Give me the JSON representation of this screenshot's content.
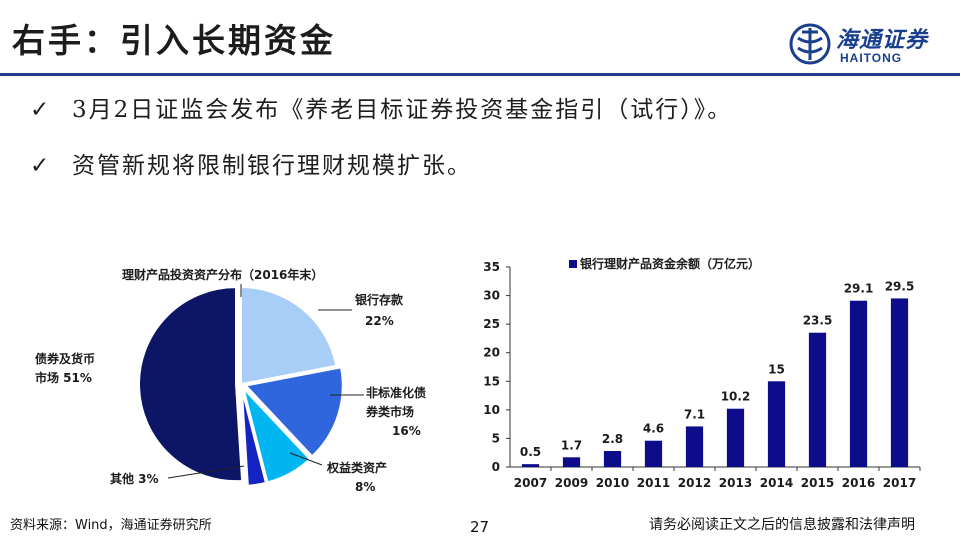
{
  "header": {
    "title": "右手：引入长期资金"
  },
  "logo": {
    "name_cn": "海通证券",
    "name_en": "HAITONG",
    "icon": "haitong-emblem-icon"
  },
  "bullets": [
    {
      "icon": "check-icon",
      "text": "3月2日证监会发布《养老目标证券投资基金指引（试行）》。"
    },
    {
      "icon": "check-icon",
      "text": "资管新规将限制银行理财规模扩张。"
    }
  ],
  "colors": {
    "brand": "#1f3d8c",
    "bar": "#0d0d8c"
  },
  "chart_data": [
    {
      "type": "pie",
      "title": "理财产品投资资产分布（2016年末）",
      "slices": [
        {
          "label": "银行存款",
          "value": 22,
          "value_label": "22%",
          "color": "#a8cdf6"
        },
        {
          "label": "非标准化债券类市场",
          "label_lines": [
            "非标准化债",
            "券类市场"
          ],
          "value": 16,
          "value_label": "16%",
          "color": "#2f66dd"
        },
        {
          "label": "权益类资产",
          "value": 8,
          "value_label": "8%",
          "color": "#00b6f0"
        },
        {
          "label": "其他",
          "value": 3,
          "value_label": "其他 3%",
          "color": "#1423c2"
        },
        {
          "label": "债券及货币市场",
          "label_lines": [
            "债券及货币",
            "市场 51%"
          ],
          "value": 51,
          "color": "#0d1666"
        }
      ]
    },
    {
      "type": "bar",
      "title": "银行理财产品资金余额（万亿元）",
      "categories": [
        "2007",
        "2009",
        "2010",
        "2011",
        "2012",
        "2013",
        "2014",
        "2015",
        "2016",
        "2017"
      ],
      "values": [
        0.5,
        1.7,
        2.8,
        4.6,
        7.1,
        10.2,
        15,
        23.5,
        29.1,
        29.5
      ],
      "value_labels": [
        "0.5",
        "1.7",
        "2.8",
        "4.6",
        "7.1",
        "10.2",
        "15",
        "23.5",
        "29.1",
        "29.5"
      ],
      "ylim": [
        0,
        35
      ],
      "yticks": [
        "0",
        "5",
        "10",
        "15",
        "20",
        "25",
        "30",
        "35"
      ],
      "grid": false,
      "legend": "top"
    }
  ],
  "footer": {
    "source": "资料来源：Wind，海通证券研究所",
    "page": "27",
    "disclaimer": "请务必阅读正文之后的信息披露和法律声明"
  }
}
